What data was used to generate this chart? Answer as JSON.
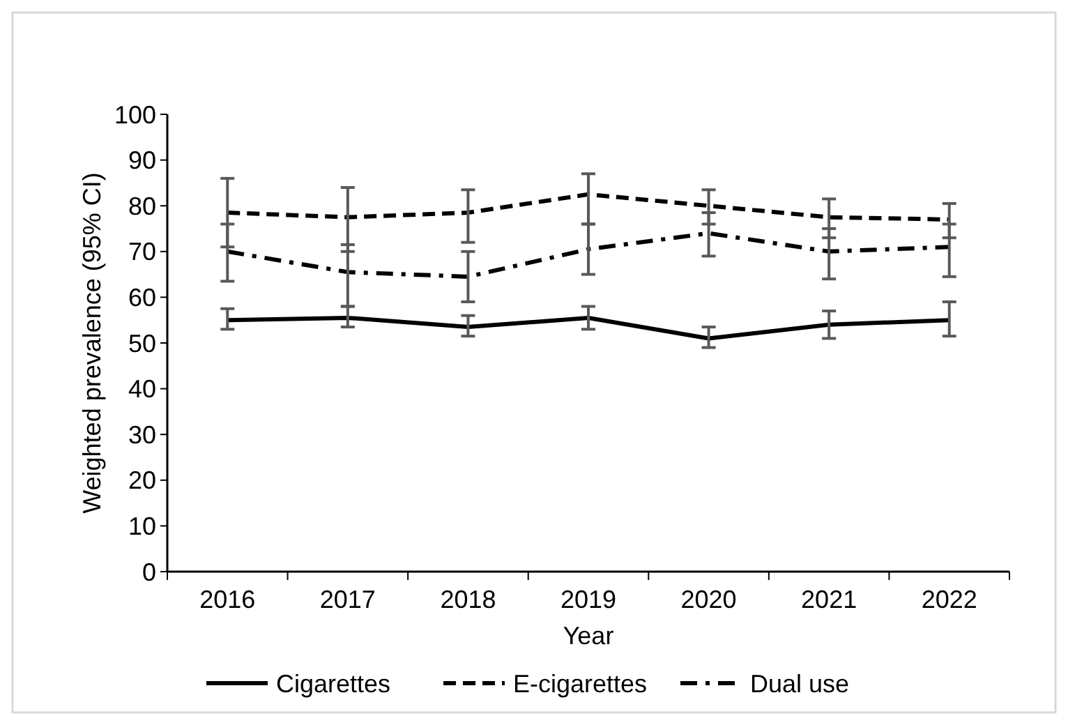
{
  "chart_data": {
    "type": "line",
    "xlabel": "Year",
    "ylabel": "Weighted prevalence (95% CI)",
    "categories": [
      "2016",
      "2017",
      "2018",
      "2019",
      "2020",
      "2021",
      "2022"
    ],
    "ylim": [
      0,
      100
    ],
    "yticks": [
      0,
      10,
      20,
      30,
      40,
      50,
      60,
      70,
      80,
      90,
      100
    ],
    "grid": false,
    "legend": "bottom",
    "marker": "none",
    "series": [
      {
        "name": "Cigarettes",
        "color": "#000000",
        "line_style": "solid",
        "values": [
          55,
          55.5,
          53.5,
          55.5,
          51,
          54,
          55
        ],
        "errors": [
          [
            53,
            57.5
          ],
          [
            53.5,
            58
          ],
          [
            51.5,
            56
          ],
          [
            53,
            58
          ],
          [
            49,
            53.5
          ],
          [
            51,
            57
          ],
          [
            51.5,
            59
          ]
        ]
      },
      {
        "name": "E-cigarettes",
        "color": "#000000",
        "line_style": "dashed",
        "values": [
          78.5,
          77.5,
          78.5,
          82.5,
          80,
          77.5,
          77
        ],
        "errors": [
          [
            71,
            86
          ],
          [
            70,
            84
          ],
          [
            72,
            83.5
          ],
          [
            76,
            87
          ],
          [
            76,
            83.5
          ],
          [
            73,
            81.5
          ],
          [
            73,
            80.5
          ]
        ]
      },
      {
        "name": "Dual use",
        "color": "#000000",
        "line_style": "dashdot",
        "values": [
          70,
          65.5,
          64.5,
          70.5,
          74,
          70,
          71
        ],
        "errors": [
          [
            63.5,
            76
          ],
          [
            58,
            71.5
          ],
          [
            59,
            70
          ],
          [
            65,
            76
          ],
          [
            69,
            78.5
          ],
          [
            64,
            75
          ],
          [
            64.5,
            76
          ]
        ]
      }
    ]
  }
}
